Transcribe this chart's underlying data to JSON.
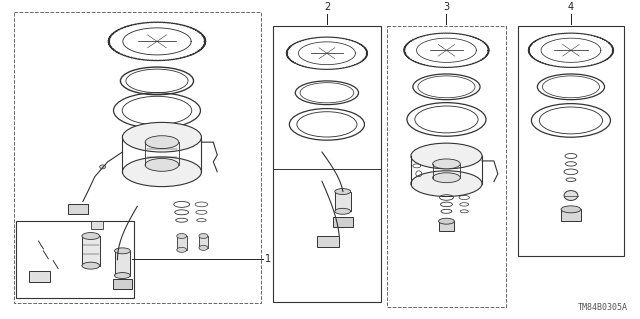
{
  "background_color": "#ffffff",
  "diagram_code": "TM84B0305A",
  "figure_width": 6.4,
  "figure_height": 3.19,
  "dpi": 100,
  "line_color": "#333333",
  "text_color": "#222222",
  "label_fontsize": 7,
  "code_fontsize": 6
}
